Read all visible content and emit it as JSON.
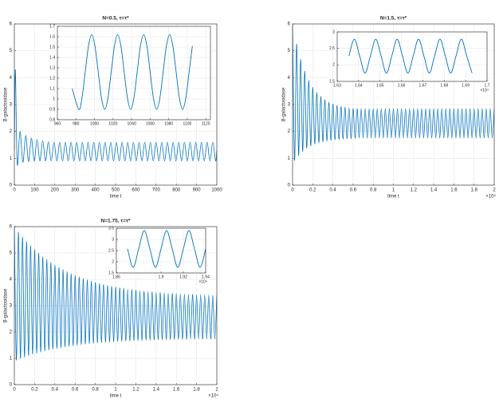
{
  "chart_data": [
    {
      "type": "line",
      "title": "N=0.5, τ=τ*",
      "xlabel": "time t",
      "ylabel": "B-galactosidase",
      "grid": true,
      "xlim": [
        0,
        1000
      ],
      "xticks": [
        0,
        100,
        200,
        300,
        400,
        500,
        600,
        700,
        800,
        900,
        1000
      ],
      "ylim": [
        0,
        6
      ],
      "yticks": [
        0,
        1,
        2,
        3,
        4,
        5,
        6
      ],
      "color": "#0072bd",
      "x": [
        0,
        5,
        14,
        28,
        42,
        56,
        70,
        84,
        98,
        112,
        126,
        140,
        154,
        168,
        182,
        196,
        210,
        224,
        238,
        252,
        266,
        280,
        294,
        308,
        322,
        336,
        350,
        364,
        378,
        392,
        406,
        420,
        434,
        448,
        462,
        476,
        490,
        504,
        518,
        532,
        546,
        560,
        574,
        588,
        602,
        616,
        630,
        644,
        658,
        672,
        686,
        700,
        714,
        728,
        742,
        756,
        770,
        784,
        798,
        812,
        826,
        840,
        854,
        868,
        882,
        896,
        910,
        924,
        938,
        952,
        966,
        980,
        994,
        1000
      ],
      "values": [
        1.3,
        4.3,
        0.8,
        2.0,
        0.85,
        1.85,
        0.88,
        1.75,
        0.9,
        1.7,
        0.9,
        1.65,
        0.9,
        1.62,
        0.9,
        1.6,
        0.9,
        1.6,
        0.9,
        1.6,
        0.9,
        1.6,
        0.9,
        1.6,
        0.9,
        1.6,
        0.9,
        1.6,
        0.9,
        1.6,
        0.9,
        1.6,
        0.9,
        1.6,
        0.9,
        1.6,
        0.9,
        1.6,
        0.9,
        1.6,
        0.9,
        1.6,
        0.9,
        1.6,
        0.9,
        1.6,
        0.9,
        1.6,
        0.9,
        1.6,
        0.9,
        1.6,
        0.9,
        1.6,
        0.9,
        1.6,
        0.9,
        1.6,
        0.9,
        1.6,
        0.9,
        1.6,
        0.9,
        1.6,
        0.9,
        1.6,
        0.9,
        1.6,
        0.9,
        1.6,
        0.9,
        1.6,
        0.9,
        1.3
      ],
      "inset": {
        "type": "line",
        "grid": true,
        "color": "#0072bd",
        "xlim": [
          960,
          1125
        ],
        "xticks": [
          960,
          980,
          1000,
          1020,
          1040,
          1060,
          1080,
          1100,
          1120
        ],
        "ylim": [
          0.8,
          1.7
        ],
        "yticks": [
          0.8,
          0.9,
          1,
          1.1,
          1.2,
          1.3,
          1.4,
          1.5,
          1.6,
          1.7
        ],
        "x": [
          976,
          983,
          986.5,
          990,
          993.5,
          997,
          1000.5,
          1004,
          1007.5,
          1011,
          1014.5,
          1018,
          1021.5,
          1025,
          1028.5,
          1032,
          1035.5,
          1039,
          1042.5,
          1046,
          1049.5,
          1053,
          1056.5,
          1060,
          1063.5,
          1067,
          1070.5,
          1074,
          1077.5,
          1081,
          1084.5,
          1088,
          1091.5,
          1095,
          1098.5,
          1102,
          1105.5
        ],
        "values": [
          1.1,
          0.9,
          1.01,
          1.26,
          1.51,
          1.62,
          1.51,
          1.26,
          1.01,
          0.9,
          1.01,
          1.26,
          1.51,
          1.62,
          1.51,
          1.26,
          1.01,
          0.9,
          1.01,
          1.26,
          1.51,
          1.62,
          1.51,
          1.26,
          1.01,
          0.9,
          1.01,
          1.26,
          1.51,
          1.62,
          1.51,
          1.26,
          1.01,
          0.9,
          1.01,
          1.26,
          1.51
        ]
      }
    },
    {
      "type": "line",
      "title": "N=1.5, τ=τ*",
      "xlabel": "time t",
      "ylabel": "B-galactosidase",
      "grid": true,
      "x_multiplier": "×10⁴",
      "xlim": [
        0,
        20000
      ],
      "xticks": [
        {
          "value": 0,
          "label": "0"
        },
        {
          "value": 2000,
          "label": "0.2"
        },
        {
          "value": 4000,
          "label": "0.4"
        },
        {
          "value": 6000,
          "label": "0.6"
        },
        {
          "value": 8000,
          "label": "0.8"
        },
        {
          "value": 10000,
          "label": "1"
        },
        {
          "value": 12000,
          "label": "1.2"
        },
        {
          "value": 14000,
          "label": "1.4"
        },
        {
          "value": 16000,
          "label": "1.6"
        },
        {
          "value": 18000,
          "label": "1.8"
        },
        {
          "value": 20000,
          "label": "2"
        }
      ],
      "ylim": [
        0,
        6
      ],
      "yticks": [
        0,
        1,
        2,
        3,
        4,
        5,
        6
      ],
      "color": "#0072bd",
      "x": [
        0,
        200,
        400,
        600,
        800,
        1000,
        1200,
        1400,
        1600,
        1800,
        2000,
        2200,
        2400,
        2600,
        2800,
        3000,
        3200,
        3400,
        3600,
        3800,
        4000,
        4200,
        4400,
        4600,
        4800,
        5000,
        5200,
        5400,
        5600,
        5800,
        6000,
        6200,
        6400,
        6600,
        6800,
        7000,
        7200,
        7400,
        7600,
        7800,
        8000,
        8200,
        8400,
        8600,
        8800,
        9000,
        9200,
        9400,
        9600,
        9800,
        10000,
        10200,
        10400,
        10600,
        10800,
        11000,
        11200,
        11400,
        11600,
        11800,
        12000,
        12200,
        12400,
        12600,
        12800,
        13000,
        13200,
        13400,
        13600,
        13800,
        14000,
        14200,
        14400,
        14600,
        14800,
        15000,
        15200,
        15400,
        15600,
        15800,
        16000,
        16200,
        16400,
        16600,
        16800,
        17000,
        17200,
        17400,
        17600,
        17800,
        18000,
        18200,
        18400,
        18600,
        18800,
        19000,
        19200,
        19400,
        19600,
        19800,
        20000
      ],
      "values": [
        6.0,
        0.92,
        5.25,
        1.11,
        4.68,
        1.26,
        4.24,
        1.38,
        3.9,
        1.46,
        3.64,
        1.53,
        3.45,
        1.58,
        3.3,
        1.62,
        3.18,
        1.65,
        3.09,
        1.67,
        3.02,
        1.69,
        2.97,
        1.7,
        2.93,
        1.72,
        2.9,
        1.73,
        2.88,
        1.73,
        2.86,
        1.74,
        2.85,
        1.75,
        2.85,
        1.75,
        2.85,
        1.75,
        2.85,
        1.75,
        2.85,
        1.75,
        2.85,
        1.75,
        2.85,
        1.75,
        2.85,
        1.75,
        2.85,
        1.75,
        2.85,
        1.75,
        2.85,
        1.75,
        2.85,
        1.75,
        2.85,
        1.75,
        2.85,
        1.75,
        2.85,
        1.75,
        2.85,
        1.75,
        2.85,
        1.75,
        2.85,
        1.75,
        2.85,
        1.75,
        2.85,
        1.75,
        2.85,
        1.75,
        2.85,
        1.75,
        2.85,
        1.75,
        2.85,
        1.75,
        2.85,
        1.75,
        2.85,
        1.75,
        2.85,
        1.75,
        2.85,
        1.75,
        2.85,
        1.75,
        2.85,
        1.75,
        2.85,
        1.75,
        2.85,
        1.75,
        2.85,
        1.75,
        2.85,
        1.75,
        2.85
      ],
      "inset": {
        "type": "line",
        "grid": true,
        "color": "#0072bd",
        "x_multiplier": "×10⁴",
        "xlim": [
          16300,
          17000
        ],
        "xticks": [
          {
            "value": 16300,
            "label": "1.63"
          },
          {
            "value": 16400,
            "label": "1.64"
          },
          {
            "value": 16500,
            "label": "1.65"
          },
          {
            "value": 16600,
            "label": "1.66"
          },
          {
            "value": 16700,
            "label": "1.67"
          },
          {
            "value": 16800,
            "label": "1.68"
          },
          {
            "value": 16900,
            "label": "1.69"
          },
          {
            "value": 17000,
            "label": "1.7"
          }
        ],
        "ylim": [
          1.5,
          3
        ],
        "yticks": [
          1.5,
          2,
          2.5,
          3
        ],
        "x": [
          16355,
          16380,
          16405,
          16430,
          16455,
          16480,
          16505,
          16530,
          16555,
          16580,
          16605,
          16630,
          16655,
          16680,
          16705,
          16730,
          16755,
          16780,
          16805,
          16830,
          16855,
          16880,
          16905,
          16930
        ],
        "values": [
          2.27,
          2.78,
          2.27,
          1.75,
          2.27,
          2.78,
          2.27,
          1.75,
          2.27,
          2.78,
          2.27,
          1.75,
          2.27,
          2.78,
          2.27,
          1.75,
          2.27,
          2.78,
          2.27,
          1.75,
          2.27,
          2.78,
          2.27,
          1.75
        ]
      }
    },
    {
      "type": "line",
      "title": "N=1.75, τ=τ*",
      "xlabel": "time t",
      "ylabel": "B-galactosidase",
      "grid": true,
      "x_multiplier": "×10⁴",
      "xlim": [
        0,
        20000
      ],
      "xticks": [
        {
          "value": 0,
          "label": "0"
        },
        {
          "value": 2000,
          "label": "0.2"
        },
        {
          "value": 4000,
          "label": "0.4"
        },
        {
          "value": 6000,
          "label": "0.6"
        },
        {
          "value": 8000,
          "label": "0.8"
        },
        {
          "value": 10000,
          "label": "1"
        },
        {
          "value": 12000,
          "label": "1.2"
        },
        {
          "value": 14000,
          "label": "1.4"
        },
        {
          "value": 16000,
          "label": "1.6"
        },
        {
          "value": 18000,
          "label": "1.8"
        },
        {
          "value": 20000,
          "label": "2"
        }
      ],
      "ylim": [
        0,
        6
      ],
      "yticks": [
        0,
        1,
        2,
        3,
        4,
        5,
        6
      ],
      "color": "#0072bd",
      "x": [
        0,
        200,
        400,
        600,
        800,
        1000,
        1200,
        1400,
        1600,
        1800,
        2000,
        2200,
        2400,
        2600,
        2800,
        3000,
        3200,
        3400,
        3600,
        3800,
        4000,
        4200,
        4400,
        4600,
        4800,
        5000,
        5200,
        5400,
        5600,
        5800,
        6000,
        6200,
        6400,
        6600,
        6800,
        7000,
        7200,
        7400,
        7600,
        7800,
        8000,
        8200,
        8400,
        8600,
        8800,
        9000,
        9200,
        9400,
        9600,
        9800,
        10000,
        10200,
        10400,
        10600,
        10800,
        11000,
        11200,
        11400,
        11600,
        11800,
        12000,
        12200,
        12400,
        12600,
        12800,
        13000,
        13200,
        13400,
        13600,
        13800,
        14000,
        14200,
        14400,
        14600,
        14800,
        15000,
        15200,
        15400,
        15600,
        15800,
        16000,
        16200,
        16400,
        16600,
        16800,
        17000,
        17200,
        17400,
        17600,
        17800,
        18000,
        18200,
        18400,
        18600,
        18800,
        19000,
        19200,
        19400,
        19600,
        19800,
        20000
      ],
      "values": [
        6.0,
        0.93,
        5.8,
        1.0,
        5.61,
        1.05,
        5.44,
        1.11,
        5.27,
        1.16,
        5.13,
        1.2,
        4.99,
        1.24,
        4.86,
        1.28,
        4.75,
        1.32,
        4.64,
        1.35,
        4.54,
        1.38,
        4.45,
        1.41,
        4.37,
        1.44,
        4.29,
        1.46,
        4.21,
        1.48,
        4.15,
        1.5,
        4.09,
        1.52,
        4.03,
        1.54,
        3.98,
        1.56,
        3.93,
        1.57,
        3.89,
        1.59,
        3.84,
        1.6,
        3.81,
        1.61,
        3.77,
        1.62,
        3.74,
        1.63,
        3.71,
        1.64,
        3.68,
        1.65,
        3.66,
        1.66,
        3.63,
        1.66,
        3.61,
        1.67,
        3.59,
        1.68,
        3.57,
        1.68,
        3.55,
        1.69,
        3.54,
        1.69,
        3.53,
        1.7,
        3.51,
        1.7,
        3.5,
        1.71,
        3.49,
        1.71,
        3.48,
        1.71,
        3.47,
        1.72,
        3.46,
        1.72,
        3.45,
        1.72,
        3.44,
        1.72,
        3.43,
        1.72,
        3.43,
        1.73,
        3.42,
        1.73,
        3.42,
        1.73,
        3.41,
        1.73,
        3.41,
        1.73,
        3.4,
        1.73,
        3.4
      ],
      "inset": {
        "type": "line",
        "grid": true,
        "color": "#0072bd",
        "x_multiplier": "×10⁴",
        "xlim": [
          18600,
          19400
        ],
        "xticks": [
          {
            "value": 18600,
            "label": "1.86"
          },
          {
            "value": 19000,
            "label": "1.9"
          },
          {
            "value": 19200,
            "label": "1.92"
          },
          {
            "value": 19400,
            "label": "1.94"
          }
        ],
        "ylim": [
          1.5,
          3.5
        ],
        "yticks": [
          1.5,
          2,
          2.5,
          3,
          3.5
        ],
        "x": [
          18700,
          18750,
          18800,
          18850,
          18900,
          18950,
          19000,
          19050,
          19100,
          19150,
          19200,
          19250,
          19300,
          19350,
          19400
        ],
        "values": [
          2.58,
          1.75,
          2.58,
          3.4,
          2.58,
          1.75,
          2.58,
          3.4,
          2.58,
          1.75,
          2.58,
          3.4,
          2.58,
          1.75,
          2.58
        ]
      }
    }
  ]
}
